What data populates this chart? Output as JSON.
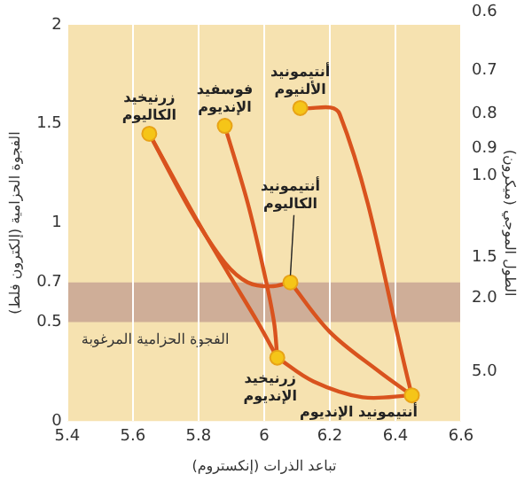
{
  "chart_data": {
    "type": "line",
    "xlabel": "تباعد الذرات (إنكستروم)",
    "ylabel": "الفجوة الحزامية (إلكترون فلط)",
    "y2label": "الطول الموجي (ميكرون)",
    "xlim": [
      5.4,
      6.6
    ],
    "xticks": [
      5.4,
      5.6,
      5.8,
      6.0,
      6.2,
      6.4,
      6.6
    ],
    "ylim": [
      0,
      2
    ],
    "yticks": [
      0,
      0.5,
      0.7,
      1.0,
      1.5,
      2.0
    ],
    "grid": "x",
    "legend": false,
    "line_style": "solid",
    "bands": [
      {
        "axis": "y",
        "from": 0.5,
        "to": 0.7,
        "label": "الفجوة الحزامية المرغوبة",
        "color": "#cfae98"
      }
    ],
    "series": [
      {
        "type": "line",
        "color": "#d9531e",
        "x": [
          5.65,
          5.78,
          5.88,
          5.95,
          6.02,
          6.08
        ],
        "values": [
          1.45,
          1.05,
          0.8,
          0.7,
          0.68,
          0.7
        ]
      },
      {
        "type": "line",
        "color": "#d9531e",
        "x": [
          5.65,
          5.8,
          5.9,
          5.98,
          6.04
        ],
        "values": [
          1.45,
          1.0,
          0.72,
          0.5,
          0.32
        ]
      },
      {
        "type": "line",
        "color": "#d9531e",
        "x": [
          5.88,
          5.95,
          6.0,
          6.03,
          6.04
        ],
        "values": [
          1.49,
          1.1,
          0.75,
          0.5,
          0.32
        ]
      },
      {
        "type": "line",
        "color": "#d9531e",
        "x": [
          6.08,
          6.2,
          6.35,
          6.45
        ],
        "values": [
          0.7,
          0.45,
          0.25,
          0.13
        ]
      },
      {
        "type": "line",
        "color": "#d9531e",
        "x": [
          6.04,
          6.15,
          6.3,
          6.45
        ],
        "values": [
          0.32,
          0.2,
          0.12,
          0.13
        ]
      },
      {
        "type": "line",
        "color": "#d9531e",
        "x": [
          6.11,
          6.23,
          6.45
        ],
        "values": [
          1.58,
          1.55,
          0.13
        ]
      },
      {
        "type": "scatter",
        "marker": "circle",
        "color": "#f5c518",
        "x": [
          5.65,
          5.88,
          6.11,
          6.08,
          6.04,
          6.45
        ],
        "values": [
          1.45,
          1.49,
          1.58,
          0.7,
          0.32,
          0.13
        ]
      }
    ],
    "annotations": [
      {
        "text": "زرنيخيد الكاليوم",
        "x": 5.65,
        "y": 1.45
      },
      {
        "text": "فوسفيد الإنديوم",
        "x": 5.88,
        "y": 1.49
      },
      {
        "text": "أنتيمونيد الألنيوم",
        "x": 6.11,
        "y": 1.58
      },
      {
        "text": "أنتيمونيد الكاليوم",
        "x": 6.08,
        "y": 0.7
      },
      {
        "text": "زرنيخيد الإنديوم",
        "x": 6.04,
        "y": 0.32
      },
      {
        "text": "أنتيمونيد الإنديوم",
        "x": 6.45,
        "y": 0.13
      },
      "0.6",
      "0.7",
      "0.8",
      "0.9",
      "1.0",
      "1.5",
      "2.0",
      "5.0"
    ]
  }
}
